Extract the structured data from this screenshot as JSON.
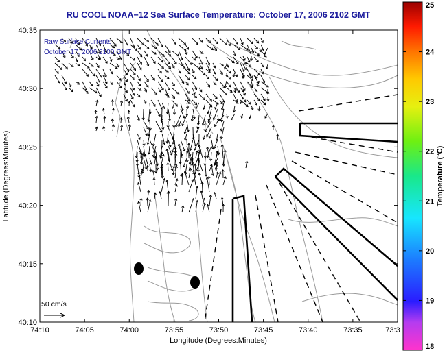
{
  "title": "RU COOL  NOAA−12  Sea Surface Temperature:  October 17, 2006 2102 GMT",
  "inset_lines": [
    "Raw Surface Currents",
    "October 17, 2006 2100 GMT"
  ],
  "x_axis": {
    "label": "Longitude (Degrees:Minutes)",
    "ticks": [
      "74:10",
      "74:05",
      "74:00",
      "73:55",
      "73:50",
      "73:45",
      "73:40",
      "73:35",
      "73:3"
    ]
  },
  "y_axis": {
    "label": "Latitude (Degrees:Minutes)",
    "ticks": [
      "40:35",
      "40:30",
      "40:25",
      "40:20",
      "40:15",
      "40:10"
    ]
  },
  "colorbar": {
    "label": "Temperature (°C)",
    "ticks": [
      "25",
      "24",
      "23",
      "22",
      "21",
      "20",
      "19",
      "18"
    ],
    "min": 18,
    "max": 25
  },
  "scale_label": "50 cm/s",
  "colors": {
    "title": "#1a1a9c",
    "contour": "#9a9a9a",
    "line": "#000000"
  }
}
